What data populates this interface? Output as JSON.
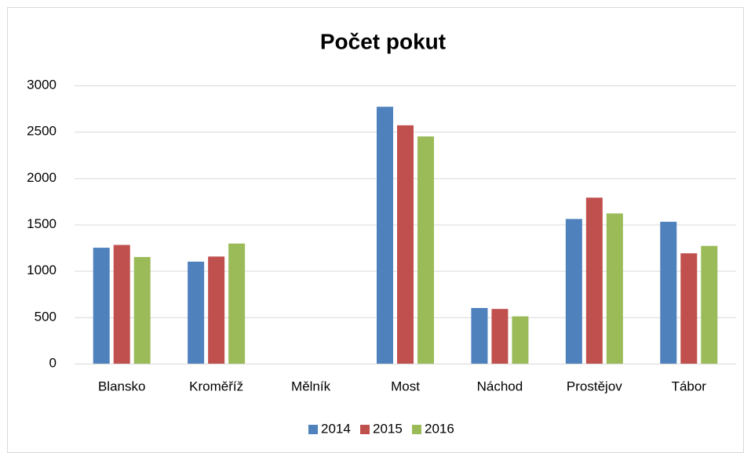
{
  "chart_data": {
    "type": "bar",
    "title": "Počet pokut",
    "categories": [
      "Blansko",
      "Kroměříž",
      "Mělník",
      "Most",
      "Náchod",
      "Prostějov",
      "Tábor"
    ],
    "series": [
      {
        "name": "2014",
        "color": "#4f81bd",
        "values": [
          1250,
          1100,
          null,
          2770,
          600,
          1560,
          1530
        ]
      },
      {
        "name": "2015",
        "color": "#c0504d",
        "values": [
          1280,
          1155,
          null,
          2570,
          590,
          1790,
          1190
        ]
      },
      {
        "name": "2016",
        "color": "#9bbb59",
        "values": [
          1150,
          1295,
          null,
          2450,
          510,
          1620,
          1270
        ]
      }
    ],
    "ylim": [
      0,
      3000
    ],
    "yticks": [
      0,
      500,
      1000,
      1500,
      2000,
      2500,
      3000
    ],
    "grid": true,
    "legend": "bottom"
  }
}
